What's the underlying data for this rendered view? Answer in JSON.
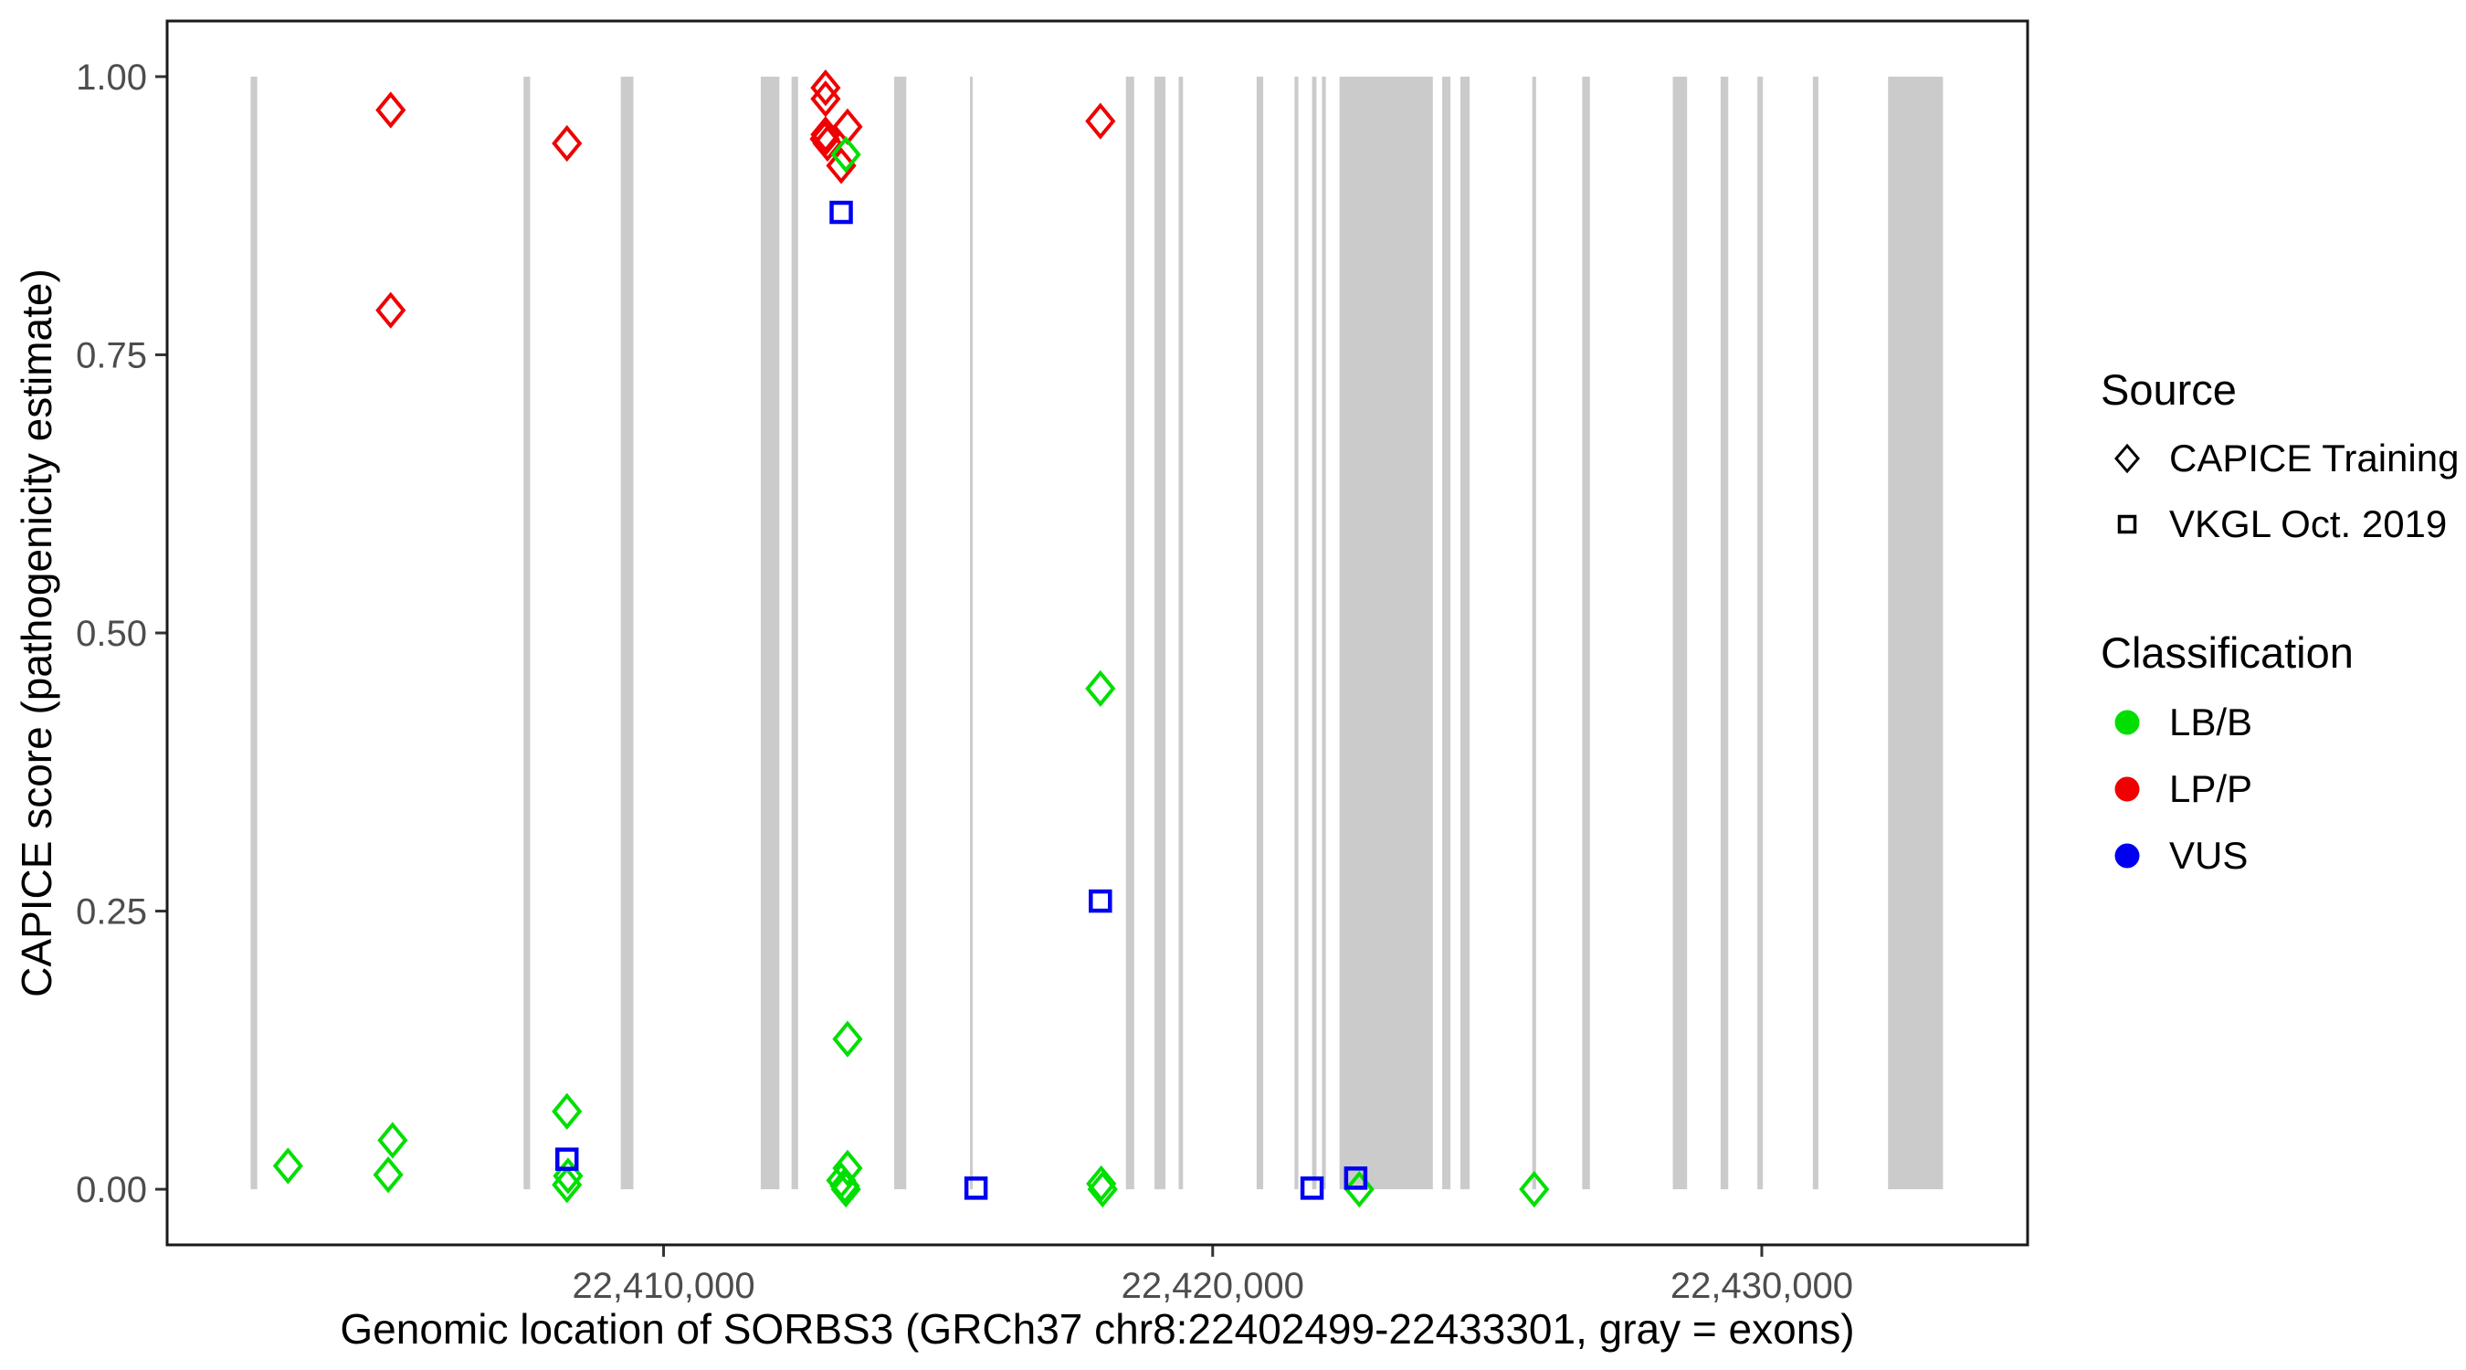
{
  "page": {
    "background": "#FFFFFF"
  },
  "style": {
    "axis_text_color": "#4D4D4D",
    "axis_title_color": "#000000",
    "panel_border_color": "#1A1A1A",
    "tick_mark_color": "#333333",
    "legend_glyph_color": "#000000"
  },
  "legend": {
    "source": {
      "title": "Source",
      "items": [
        {
          "label": "CAPICE Training",
          "shape": "diamond"
        },
        {
          "label": "VKGL Oct. 2019",
          "shape": "square"
        }
      ]
    },
    "classification": {
      "title": "Classification",
      "items": [
        {
          "label": "LB/B"
        },
        {
          "label": "LP/P"
        },
        {
          "label": "VUS"
        }
      ]
    }
  },
  "chart_data": {
    "type": "scatter",
    "title": "",
    "xlabel": "Genomic location of SORBS3 (GRCh37 chr8:22402499-22433301, gray = exons)",
    "ylabel": "CAPICE score (pathogenicity estimate)",
    "x_domain": [
      22400959,
      22434841
    ],
    "y_domain": [
      -0.05,
      1.05
    ],
    "grid": "off",
    "legend_position": "right",
    "x_ticks": [
      {
        "value": 22410000,
        "label": "22,410,000"
      },
      {
        "value": 22420000,
        "label": "22,420,000"
      },
      {
        "value": 22430000,
        "label": "22,430,000"
      }
    ],
    "y_ticks": [
      {
        "value": 0.0,
        "label": "0.00"
      },
      {
        "value": 0.25,
        "label": "0.25"
      },
      {
        "value": 0.5,
        "label": "0.50"
      },
      {
        "value": 0.75,
        "label": "0.75"
      },
      {
        "value": 1.0,
        "label": "1.00"
      }
    ],
    "exon_color": "#CBCBCB",
    "exon_band": {
      "ymin": 0,
      "ymax": 1
    },
    "exons": [
      [
        22402480,
        22402600
      ],
      [
        22407450,
        22407570
      ],
      [
        22409220,
        22409450
      ],
      [
        22411770,
        22412110
      ],
      [
        22412330,
        22412450
      ],
      [
        22414200,
        22414420
      ],
      [
        22415580,
        22415630
      ],
      [
        22418420,
        22418570
      ],
      [
        22418940,
        22419140
      ],
      [
        22419380,
        22419460
      ],
      [
        22420800,
        22420920
      ],
      [
        22421490,
        22421560
      ],
      [
        22421810,
        22421890
      ],
      [
        22421990,
        22422060
      ],
      [
        22422310,
        22424010
      ],
      [
        22424180,
        22424330
      ],
      [
        22424510,
        22424680
      ],
      [
        22425820,
        22425890
      ],
      [
        22426730,
        22426870
      ],
      [
        22428380,
        22428640
      ],
      [
        22429250,
        22429390
      ],
      [
        22429920,
        22430020
      ],
      [
        22430930,
        22431030
      ],
      [
        22432300,
        22433300
      ]
    ],
    "shape_by_source": {
      "CAPICE Training": "diamond",
      "VKGL Oct. 2019": "square"
    },
    "color_by_classification": {
      "LB/B": "#00DF00",
      "LP/P": "#F00000",
      "VUS": "#0000F0"
    },
    "points": [
      {
        "bp": 22405030,
        "score": 0.97,
        "source": "CAPICE Training",
        "classification": "LP/P"
      },
      {
        "bp": 22405030,
        "score": 0.79,
        "source": "CAPICE Training",
        "classification": "LP/P"
      },
      {
        "bp": 22408240,
        "score": 0.94,
        "source": "CAPICE Training",
        "classification": "LP/P"
      },
      {
        "bp": 22412950,
        "score": 0.99,
        "source": "CAPICE Training",
        "classification": "LP/P"
      },
      {
        "bp": 22412950,
        "score": 0.98,
        "source": "CAPICE Training",
        "classification": "LP/P"
      },
      {
        "bp": 22413350,
        "score": 0.955,
        "source": "CAPICE Training",
        "classification": "LP/P"
      },
      {
        "bp": 22412950,
        "score": 0.948,
        "source": "CAPICE Training",
        "classification": "LP/P"
      },
      {
        "bp": 22412935,
        "score": 0.944,
        "source": "CAPICE Training",
        "classification": "LP/P"
      },
      {
        "bp": 22412985,
        "score": 0.94,
        "source": "CAPICE Training",
        "classification": "LP/P"
      },
      {
        "bp": 22413235,
        "score": 0.92,
        "source": "CAPICE Training",
        "classification": "LP/P"
      },
      {
        "bp": 22417955,
        "score": 0.96,
        "source": "CAPICE Training",
        "classification": "LP/P"
      },
      {
        "bp": 22413320,
        "score": 0.93,
        "source": "CAPICE Training",
        "classification": "LB/B"
      },
      {
        "bp": 22417955,
        "score": 0.45,
        "source": "CAPICE Training",
        "classification": "LB/B"
      },
      {
        "bp": 22413350,
        "score": 0.135,
        "source": "CAPICE Training",
        "classification": "LB/B"
      },
      {
        "bp": 22408240,
        "score": 0.07,
        "source": "CAPICE Training",
        "classification": "LB/B"
      },
      {
        "bp": 22405065,
        "score": 0.044,
        "source": "CAPICE Training",
        "classification": "LB/B"
      },
      {
        "bp": 22403160,
        "score": 0.021,
        "source": "CAPICE Training",
        "classification": "LB/B"
      },
      {
        "bp": 22404985,
        "score": 0.013,
        "source": "CAPICE Training",
        "classification": "LB/B"
      },
      {
        "bp": 22408260,
        "score": 0.012,
        "source": "CAPICE Training",
        "classification": "LB/B"
      },
      {
        "bp": 22408240,
        "score": 0.004,
        "source": "CAPICE Training",
        "classification": "LB/B"
      },
      {
        "bp": 22413350,
        "score": 0.019,
        "source": "CAPICE Training",
        "classification": "LB/B"
      },
      {
        "bp": 22413235,
        "score": 0.008,
        "source": "CAPICE Training",
        "classification": "LB/B"
      },
      {
        "bp": 22413300,
        "score": 0.003,
        "source": "CAPICE Training",
        "classification": "LB/B"
      },
      {
        "bp": 22413320,
        "score": 0.0,
        "source": "CAPICE Training",
        "classification": "LB/B"
      },
      {
        "bp": 22417970,
        "score": 0.005,
        "source": "CAPICE Training",
        "classification": "LB/B"
      },
      {
        "bp": 22417995,
        "score": 0.0,
        "source": "CAPICE Training",
        "classification": "LB/B"
      },
      {
        "bp": 22422670,
        "score": 0.0,
        "source": "CAPICE Training",
        "classification": "LB/B"
      },
      {
        "bp": 22425855,
        "score": 0.0,
        "source": "CAPICE Training",
        "classification": "LB/B"
      },
      {
        "bp": 22413235,
        "score": 0.878,
        "source": "VKGL Oct. 2019",
        "classification": "VUS"
      },
      {
        "bp": 22417955,
        "score": 0.259,
        "source": "VKGL Oct. 2019",
        "classification": "VUS"
      },
      {
        "bp": 22408240,
        "score": 0.027,
        "source": "VKGL Oct. 2019",
        "classification": "VUS"
      },
      {
        "bp": 22415690,
        "score": 0.001,
        "source": "VKGL Oct. 2019",
        "classification": "VUS"
      },
      {
        "bp": 22421810,
        "score": 0.001,
        "source": "VKGL Oct. 2019",
        "classification": "VUS"
      },
      {
        "bp": 22422605,
        "score": 0.01,
        "source": "VKGL Oct. 2019",
        "classification": "VUS"
      }
    ]
  }
}
